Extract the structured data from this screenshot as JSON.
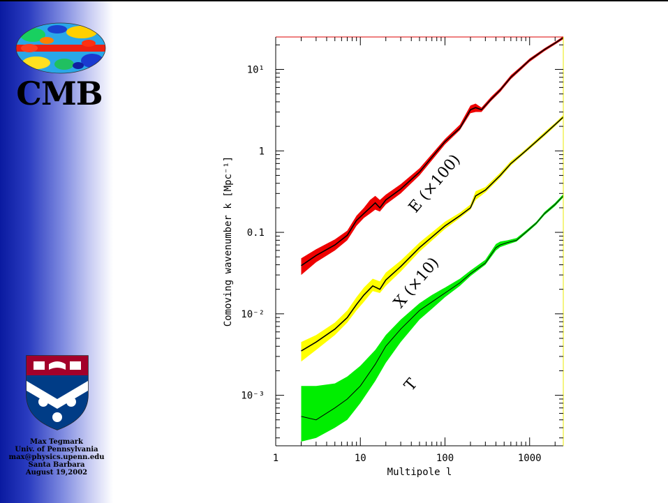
{
  "slide": {
    "title": "CMB",
    "credits": [
      "Max Tegmark",
      "Univ. of Pennsylvania",
      "max@physics.upenn.edu",
      "Santa Barbara",
      "August 19,2002"
    ]
  },
  "chart_data": {
    "type": "area",
    "xlabel": "Multipole l",
    "ylabel": "Comoving wavenumber k [Mpc⁻¹]",
    "xscale": "log",
    "yscale": "log",
    "xlim": [
      1,
      2500
    ],
    "ylim": [
      0.00024,
      25
    ],
    "x_ticks": [
      1,
      10,
      100,
      1000
    ],
    "x_tick_labels": [
      "1",
      "10",
      "100",
      "1000"
    ],
    "y_ticks": [
      0.001,
      0.01,
      0.1,
      1,
      10
    ],
    "y_tick_labels": [
      "10⁻³",
      "10⁻²",
      "0.1",
      "1",
      "10¹"
    ],
    "series": [
      {
        "name": "E (×100)",
        "color": "#ee0000",
        "l": [
          2,
          3,
          5,
          7,
          9,
          11,
          13,
          15,
          17,
          20,
          30,
          50,
          100,
          150,
          200,
          230,
          270,
          350,
          450,
          600,
          800,
          1000,
          1500,
          2000,
          2500
        ],
        "k": [
          0.039,
          0.052,
          0.07,
          0.092,
          0.14,
          0.17,
          0.2,
          0.23,
          0.2,
          0.25,
          0.34,
          0.55,
          1.3,
          1.9,
          3.2,
          3.4,
          3.2,
          4.3,
          5.6,
          8.0,
          10.5,
          13.0,
          17.5,
          21.0,
          24.5
        ],
        "k_lo": [
          0.03,
          0.043,
          0.06,
          0.08,
          0.12,
          0.15,
          0.17,
          0.19,
          0.18,
          0.22,
          0.3,
          0.5,
          1.2,
          1.8,
          2.9,
          3.0,
          3.0,
          4.1,
          5.3,
          7.6,
          10.0,
          12.4,
          16.8,
          20.2,
          23.5
        ],
        "k_hi": [
          0.048,
          0.062,
          0.082,
          0.105,
          0.16,
          0.2,
          0.25,
          0.28,
          0.25,
          0.29,
          0.39,
          0.61,
          1.4,
          2.1,
          3.6,
          3.8,
          3.4,
          4.6,
          5.9,
          8.5,
          11.0,
          13.6,
          18.2,
          21.8,
          25.5
        ]
      },
      {
        "name": "X (×10)",
        "color": "#ffff00",
        "l": [
          2,
          3,
          5,
          7,
          9,
          11,
          14,
          17,
          20,
          30,
          50,
          100,
          150,
          200,
          230,
          300,
          450,
          600,
          800,
          1000,
          1500,
          2000,
          2500
        ],
        "k": [
          0.0035,
          0.0045,
          0.0065,
          0.009,
          0.013,
          0.017,
          0.022,
          0.02,
          0.026,
          0.038,
          0.065,
          0.12,
          0.16,
          0.2,
          0.28,
          0.33,
          0.5,
          0.7,
          0.9,
          1.1,
          1.6,
          2.1,
          2.6
        ],
        "k_lo": [
          0.0026,
          0.0036,
          0.0055,
          0.0078,
          0.011,
          0.014,
          0.019,
          0.018,
          0.022,
          0.033,
          0.058,
          0.11,
          0.15,
          0.19,
          0.25,
          0.31,
          0.47,
          0.66,
          0.86,
          1.05,
          1.52,
          2.0,
          2.5
        ],
        "k_hi": [
          0.0045,
          0.0055,
          0.0078,
          0.011,
          0.016,
          0.021,
          0.027,
          0.025,
          0.032,
          0.045,
          0.075,
          0.135,
          0.175,
          0.22,
          0.32,
          0.36,
          0.54,
          0.75,
          0.95,
          1.16,
          1.7,
          2.2,
          2.75
        ]
      },
      {
        "name": "T",
        "color": "#00ee00",
        "l": [
          2,
          3,
          5,
          7,
          10,
          15,
          20,
          30,
          50,
          70,
          100,
          150,
          200,
          300,
          400,
          450,
          550,
          700,
          900,
          1200,
          1500,
          2000,
          2500
        ],
        "k": [
          0.00055,
          0.0005,
          0.0007,
          0.0009,
          0.0013,
          0.0024,
          0.004,
          0.0065,
          0.011,
          0.014,
          0.018,
          0.024,
          0.031,
          0.042,
          0.065,
          0.07,
          0.075,
          0.08,
          0.1,
          0.13,
          0.17,
          0.22,
          0.28
        ],
        "k_lo": [
          0.00027,
          0.0003,
          0.0004,
          0.0005,
          0.0008,
          0.0015,
          0.0025,
          0.0045,
          0.0085,
          0.0115,
          0.016,
          0.022,
          0.029,
          0.04,
          0.06,
          0.066,
          0.071,
          0.077,
          0.096,
          0.125,
          0.163,
          0.21,
          0.27
        ],
        "k_hi": [
          0.0013,
          0.0013,
          0.0014,
          0.0017,
          0.0023,
          0.0036,
          0.0055,
          0.0085,
          0.0135,
          0.017,
          0.021,
          0.027,
          0.034,
          0.046,
          0.072,
          0.077,
          0.08,
          0.085,
          0.105,
          0.135,
          0.178,
          0.23,
          0.295
        ]
      }
    ],
    "legend": "inline labels along curves"
  }
}
